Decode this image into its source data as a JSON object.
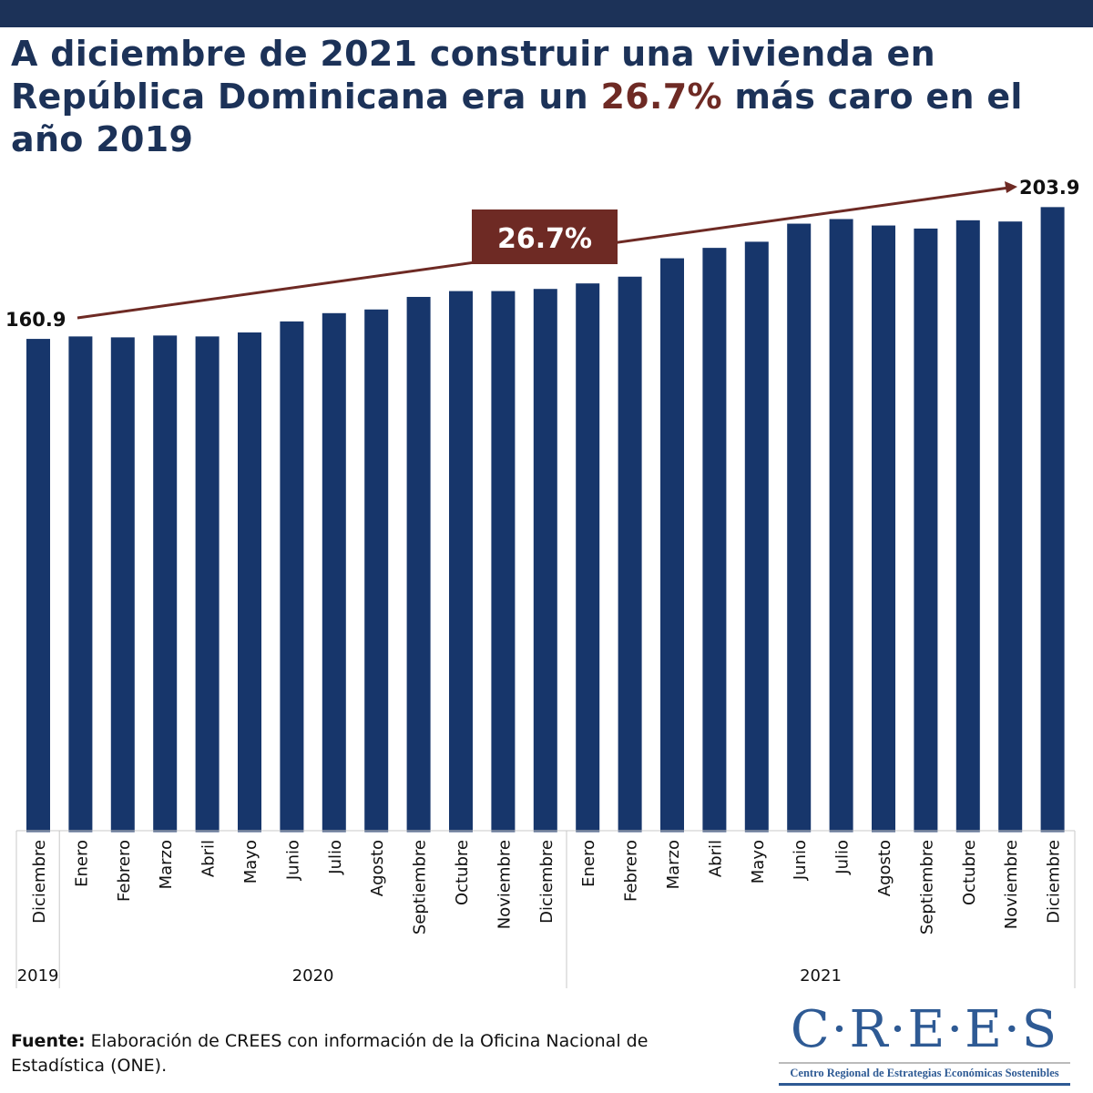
{
  "title": {
    "part1": "A diciembre de 2021 construir una vivienda en República Dominicana era un ",
    "highlight": "26.7%",
    "part2": " más caro en el año 2019"
  },
  "chart_data": {
    "type": "bar",
    "categories": [
      "Diciembre",
      "Enero",
      "Febrero",
      "Marzo",
      "Abril",
      "Mayo",
      "Junio",
      "Julio",
      "Agosto",
      "Septiembre",
      "Octubre",
      "Noviembre",
      "Diciembre",
      "Enero",
      "Febrero",
      "Marzo",
      "Abril",
      "Mayo",
      "Junio",
      "Julio",
      "Agosto",
      "Septiembre",
      "Octubre",
      "Noviembre",
      "Diciembre"
    ],
    "years": [
      {
        "label": "2019",
        "count": 1
      },
      {
        "label": "2020",
        "count": 12
      },
      {
        "label": "2021",
        "count": 12
      }
    ],
    "values": [
      160.9,
      161.7,
      161.4,
      162.0,
      161.7,
      163.0,
      166.6,
      169.3,
      170.5,
      174.6,
      176.5,
      176.5,
      177.2,
      179.0,
      181.2,
      187.2,
      190.6,
      192.6,
      198.5,
      200.0,
      197.9,
      196.9,
      199.6,
      199.2,
      203.9
    ],
    "ylim": [
      0,
      205
    ],
    "grid": false,
    "annotations": {
      "start_label": "160.9",
      "end_label": "203.9",
      "change_label": "26.7%"
    },
    "colors": {
      "bar": "#17366b",
      "arrow": "#6e2a24",
      "change_box": "#6e2a24"
    }
  },
  "source": {
    "label": "Fuente:",
    "text": " Elaboración de CREES con información de la Oficina Nacional de Estadística (ONE)."
  },
  "logo": {
    "mark": "C·R·E·E·S",
    "subtitle": "Centro Regional de Estrategias Económicas Sostenibles"
  }
}
